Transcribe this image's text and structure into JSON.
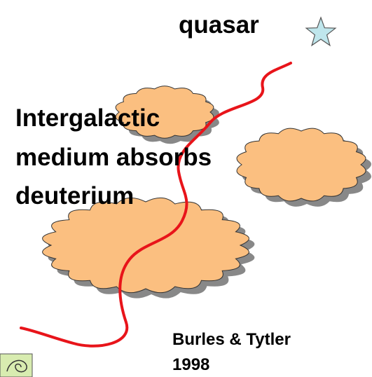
{
  "quasar_label": "quasar",
  "medium_label": [
    "Intergalactic",
    "medium absorbs",
    "deuterium"
  ],
  "credit": [
    "Burles & Tytler",
    "1998"
  ]
}
